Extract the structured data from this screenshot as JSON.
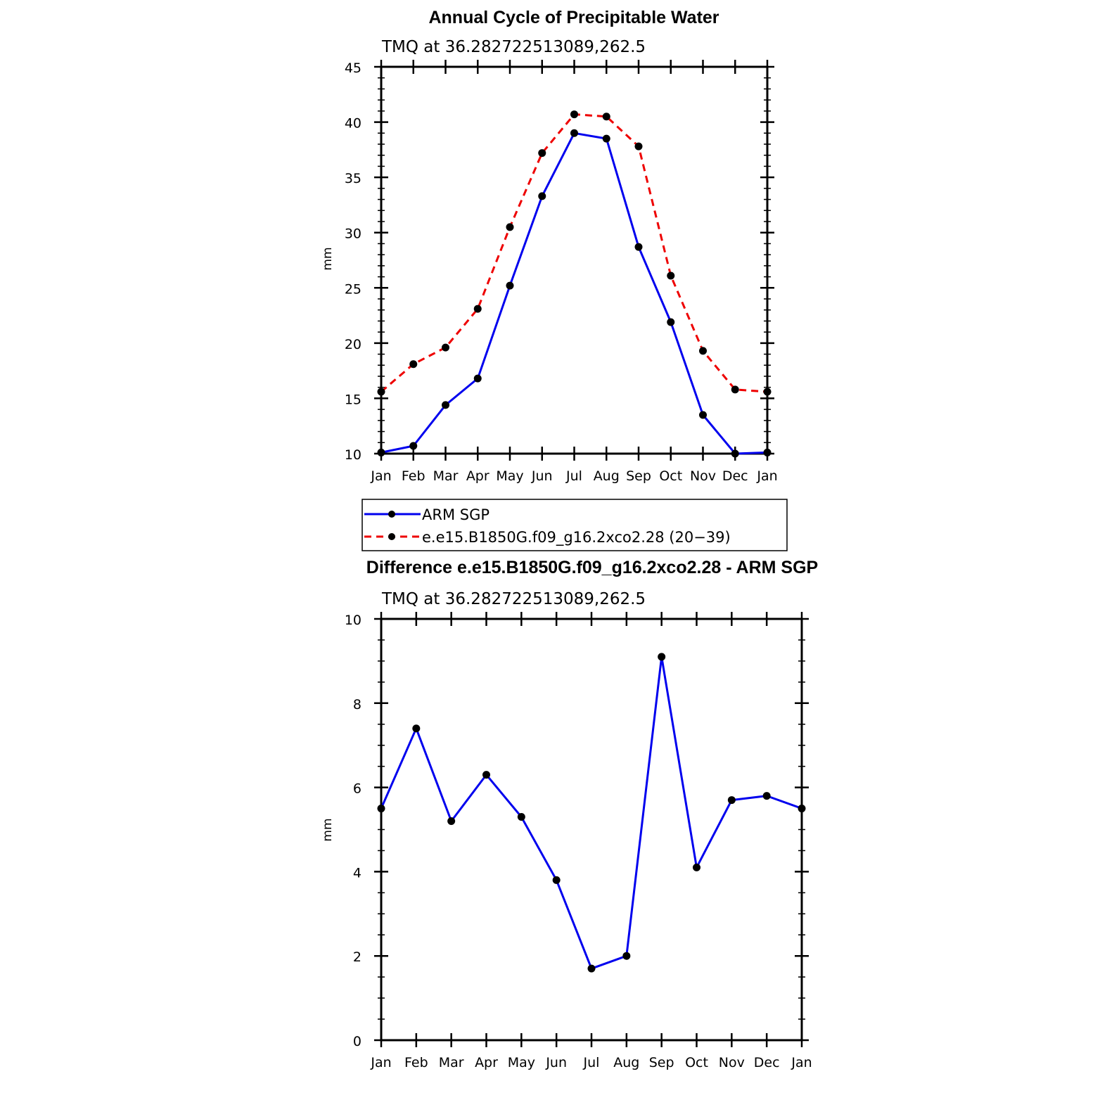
{
  "chart_data": [
    {
      "type": "line",
      "title": "Annual Cycle of Precipitable Water",
      "subtitle": "TMQ at 36.282722513089,262.5",
      "xlabel": "",
      "ylabel": "mm",
      "categories": [
        "Jan",
        "Feb",
        "Mar",
        "Apr",
        "May",
        "Jun",
        "Jul",
        "Aug",
        "Sep",
        "Oct",
        "Nov",
        "Dec",
        "Jan"
      ],
      "ylim": [
        10,
        45
      ],
      "yticks": [
        10,
        15,
        20,
        25,
        30,
        35,
        40,
        45
      ],
      "series": [
        {
          "name": "ARM SGP",
          "color": "#0000ee",
          "dash": "solid",
          "values": [
            10.1,
            10.7,
            14.4,
            16.8,
            25.2,
            33.3,
            39.0,
            38.5,
            28.7,
            21.9,
            13.5,
            10.0,
            10.1
          ]
        },
        {
          "name": "e.e15.B1850G.f09_g16.2xco2.28 (20−39)",
          "color": "#ee0000",
          "dash": "dashed",
          "values": [
            15.6,
            18.1,
            19.6,
            23.1,
            30.5,
            37.2,
            40.7,
            40.5,
            37.8,
            26.1,
            19.3,
            15.8,
            15.6
          ]
        }
      ],
      "legend": "bottom"
    },
    {
      "type": "line",
      "title": "Difference e.e15.B1850G.f09_g16.2xco2.28 - ARM SGP",
      "subtitle": "TMQ at 36.282722513089,262.5",
      "xlabel": "",
      "ylabel": "mm",
      "categories": [
        "Jan",
        "Feb",
        "Mar",
        "Apr",
        "May",
        "Jun",
        "Jul",
        "Aug",
        "Sep",
        "Oct",
        "Nov",
        "Dec",
        "Jan"
      ],
      "ylim": [
        0,
        10
      ],
      "yticks": [
        0,
        2,
        4,
        6,
        8,
        10
      ],
      "series": [
        {
          "name": "Difference",
          "color": "#0000ee",
          "dash": "solid",
          "values": [
            5.5,
            7.4,
            5.2,
            6.3,
            5.3,
            3.8,
            1.7,
            2.0,
            9.1,
            4.1,
            5.7,
            5.8,
            5.5
          ]
        }
      ]
    }
  ]
}
